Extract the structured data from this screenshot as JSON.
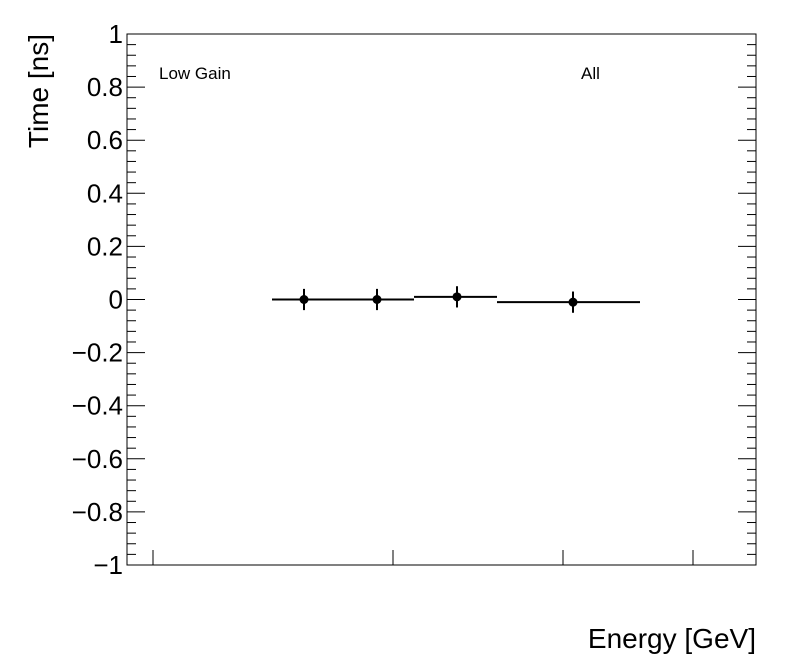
{
  "chart_data": {
    "type": "scatter",
    "title": "",
    "xlabel": "Energy [GeV]",
    "ylabel": "Time [ns]",
    "ylim": [
      -1,
      1
    ],
    "yticks": [
      "1",
      "0.8",
      "0.6",
      "0.4",
      "0.2",
      "0",
      "−0.2",
      "−0.4",
      "−0.6",
      "−0.8",
      "−1"
    ],
    "grid": false,
    "annotations": [
      "Low Gain",
      "All"
    ],
    "series": [
      {
        "points": [
          {
            "y": 0.0,
            "yerr": 0.04
          },
          {
            "y": 0.0,
            "yerr": 0.04
          },
          {
            "y": 0.01,
            "yerr": 0.04
          },
          {
            "y": -0.01,
            "yerr": 0.04
          }
        ]
      }
    ]
  }
}
